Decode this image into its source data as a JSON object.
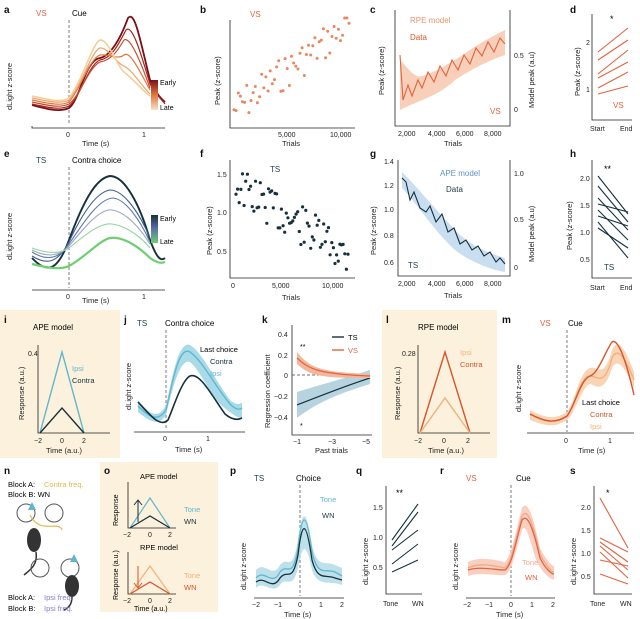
{
  "colors": {
    "vs": "#e3633f",
    "ts_dark": "#16313b",
    "ts_light": "#5fb7cf",
    "early_dark_red": "#7a0f15",
    "late_light": "#f2cf9b",
    "ts_green": "#6fcf6f",
    "model_bg": "#fbf1dc",
    "tone_teal": "#5fb7cf",
    "contra_orange": "#f0b27e"
  },
  "panels": {
    "a": {
      "letter": "a",
      "title": "VS",
      "cue": "Cue",
      "ylabel": "dLight z-score",
      "xlabel": "Time (s)",
      "xticks": [
        "0",
        "1"
      ],
      "legend": [
        "Early",
        "Late"
      ]
    },
    "b": {
      "letter": "b",
      "title": "VS",
      "ylabel": "Peak (z-score)",
      "xlabel": "Trials",
      "xticks": [
        "5,000",
        "10,000"
      ]
    },
    "c": {
      "letter": "c",
      "leg1": "RPE model",
      "leg2": "Data",
      "tag": "VS",
      "ylabel": "Peak (z-score)",
      "y2label": "Model peak (a.u)",
      "xlabel": "Trials",
      "xticks": [
        "2,000",
        "4,000",
        "6,000",
        "8,000"
      ],
      "y2ticks": [
        "0",
        "0.5"
      ]
    },
    "d": {
      "letter": "d",
      "ylabel": "Peak (z-score)",
      "tag": "VS",
      "star": "*",
      "xticks": [
        "Start",
        "End"
      ],
      "yticks": [
        "1",
        "2"
      ]
    },
    "e": {
      "letter": "e",
      "title": "TS",
      "cue": "Contra choice",
      "ylabel": "dLight z-score",
      "xlabel": "Time (s)",
      "xticks": [
        "0",
        "1"
      ],
      "legend": [
        "Early",
        "Late"
      ]
    },
    "f": {
      "letter": "f",
      "title": "TS",
      "ylabel": "Peak (z-score)",
      "xlabel": "Trials",
      "yticks": [
        "0.5",
        "1.0",
        "1.5"
      ],
      "xticks": [
        "0",
        "5,000",
        "10,000"
      ]
    },
    "g": {
      "letter": "g",
      "leg1": "APE model",
      "leg2": "Data",
      "tag": "TS",
      "ylabel": "Peak (z-score)",
      "y2label": "Model peak (a.u)",
      "xlabel": "Trials",
      "yticks": [
        "0.6",
        "0.8",
        "1.0",
        "1.2",
        "1.4"
      ],
      "y2ticks": [
        "0",
        "0.5",
        "1.0"
      ],
      "xticks": [
        "2,000",
        "4,000",
        "6,000",
        "8,000"
      ]
    },
    "h": {
      "letter": "h",
      "ylabel": "Peak (z-score)",
      "tag": "TS",
      "star": "**",
      "yticks": [
        "0.5",
        "1.0",
        "1.5",
        "2.0"
      ],
      "xticks": [
        "Start",
        "End"
      ]
    },
    "i": {
      "letter": "i",
      "title": "APE model",
      "ylabel": "Response (a.u.)",
      "xlabel": "Time (a.u.)",
      "ytick": "0.4",
      "leg_ipsi": "Ipsi",
      "leg_contra": "Contra",
      "xticks": [
        "−2",
        "0",
        "2"
      ]
    },
    "j": {
      "letter": "j",
      "title": "TS",
      "cue": "Contra choice",
      "ylabel": "dLight z-score",
      "xlabel": "Time (s)",
      "leg_title": "Last choice",
      "leg_contra": "Contra",
      "leg_ipsi": "Ipsi",
      "xticks": [
        "0",
        "1"
      ]
    },
    "k": {
      "letter": "k",
      "ylabel": "Regression coefficient",
      "xlabel": "Past trials",
      "leg_ts": "TS",
      "leg_vs": "VS",
      "yticks": [
        "0.4",
        "0.2",
        "0",
        "−0.2",
        "−0.4"
      ],
      "xticks": [
        "−1",
        "−3",
        "−5"
      ],
      "star1": "**",
      "star2": "*"
    },
    "l": {
      "letter": "l",
      "title": "RPE model",
      "ylabel": "Response (a.u.)",
      "xlabel": "Time (a.u.)",
      "ytick": "0.28",
      "leg_ipsi": "Ipsi",
      "leg_contra": "Contra",
      "xticks": [
        "−2",
        "0",
        "2"
      ]
    },
    "m": {
      "letter": "m",
      "title": "VS",
      "cue": "Cue",
      "ylabel": "dLight z-score",
      "xlabel": "Time (s)",
      "leg_title": "Last choice",
      "leg_contra": "Contra",
      "leg_ipsi": "Ipsi",
      "xticks": [
        "0",
        "1"
      ]
    },
    "n": {
      "letter": "n",
      "block_a": "Block A:",
      "block_a_val": "Contra freq.",
      "block_b": "Block B: WN",
      "block_a2": "Block A:",
      "block_a2_val": "Ipsi freq.",
      "block_b2": "Block B:",
      "block_b2_val": "Ipsi freq."
    },
    "o": {
      "letter": "o",
      "title1": "APE model",
      "title2": "RPE model",
      "ylabel1": "Response",
      "ylabel2": "Response (a.u.)",
      "xlabel": "Time (a.u.)",
      "tone": "Tone",
      "wn": "WN",
      "xticks": [
        "−2",
        "0",
        "2"
      ]
    },
    "p": {
      "letter": "p",
      "title": "TS",
      "cue": "Choice",
      "tone": "Tone",
      "wn": "WN",
      "ylabel": "dLight z-score",
      "xlabel": "Time (s)",
      "xticks": [
        "−2",
        "−1",
        "0",
        "1",
        "2"
      ]
    },
    "q": {
      "letter": "q",
      "ylabel": "dLight z-score",
      "star": "**",
      "yticks": [
        "0.5",
        "1.0",
        "1.5"
      ],
      "xticks": [
        "Tone",
        "WN"
      ]
    },
    "r": {
      "letter": "r",
      "title": "VS",
      "cue": "Cue",
      "tone": "Tone",
      "wn": "WN",
      "ylabel": "dLight z-score",
      "xlabel": "Time (s)",
      "xticks": [
        "−2",
        "−1",
        "0",
        "1",
        "2"
      ]
    },
    "s": {
      "letter": "s",
      "ylabel": "dLight z-score",
      "star": "*",
      "yticks": [
        "0.5",
        "1.0",
        "1.5",
        "2.0"
      ],
      "xticks": [
        "Tone",
        "WN"
      ]
    }
  }
}
